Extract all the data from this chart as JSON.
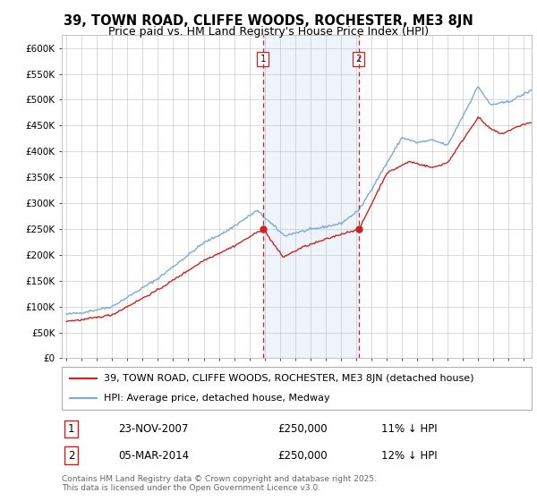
{
  "title": "39, TOWN ROAD, CLIFFE WOODS, ROCHESTER, ME3 8JN",
  "subtitle": "Price paid vs. HM Land Registry's House Price Index (HPI)",
  "ylabel_ticks": [
    "£0",
    "£50K",
    "£100K",
    "£150K",
    "£200K",
    "£250K",
    "£300K",
    "£350K",
    "£400K",
    "£450K",
    "£500K",
    "£550K",
    "£600K"
  ],
  "ytick_values": [
    0,
    50000,
    100000,
    150000,
    200000,
    250000,
    300000,
    350000,
    400000,
    450000,
    500000,
    550000,
    600000
  ],
  "xlim": [
    1994.7,
    2025.5
  ],
  "ylim": [
    0,
    625000
  ],
  "sale1_x": 2007.896,
  "sale1_y": 250000,
  "sale1_label": "1",
  "sale1_date": "23-NOV-2007",
  "sale1_price": "£250,000",
  "sale1_hpi": "11% ↓ HPI",
  "sale2_x": 2014.17,
  "sale2_y": 250000,
  "sale2_label": "2",
  "sale2_date": "05-MAR-2014",
  "sale2_price": "£250,000",
  "sale2_hpi": "12% ↓ HPI",
  "line_red_color": "#cc2222",
  "line_blue_color": "#7aaadd",
  "legend_line1": "39, TOWN ROAD, CLIFFE WOODS, ROCHESTER, ME3 8JN (detached house)",
  "legend_line2": "HPI: Average price, detached house, Medway",
  "footer": "Contains HM Land Registry data © Crown copyright and database right 2025.\nThis data is licensed under the Open Government Licence v3.0.",
  "plot_bg_color": "#ffffff",
  "grid_color": "#cccccc",
  "title_fontsize": 10.5,
  "subtitle_fontsize": 9,
  "tick_fontsize": 7.5,
  "legend_fontsize": 8,
  "footer_fontsize": 6.5
}
